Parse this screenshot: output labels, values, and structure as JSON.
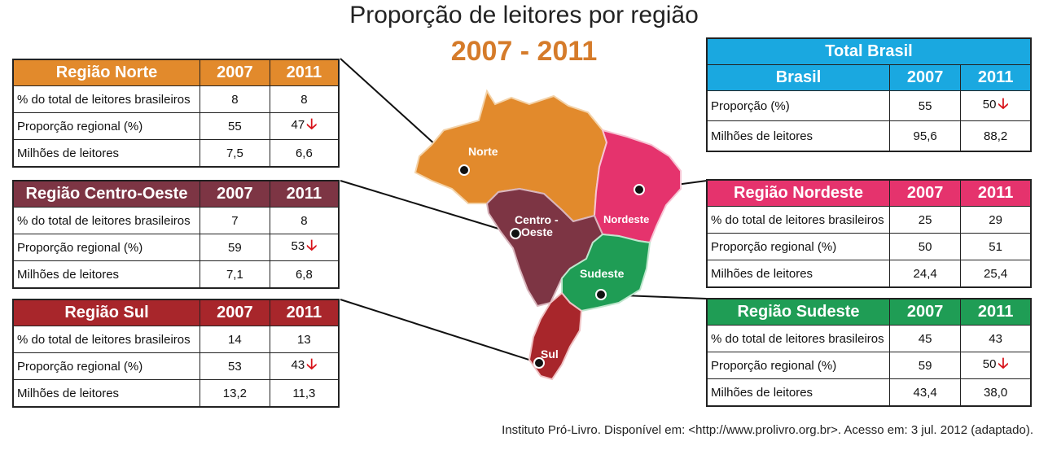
{
  "title": "Proporção de leitores por região",
  "subtitle": "2007 - 2011",
  "source": "Instituto Pró-Livro. Disponível em: <http://www.prolivro.org.br>. Acesso em: 3 jul. 2012 (adaptado).",
  "colors": {
    "norte": "#e28a2c",
    "centro_oeste": "#7d3544",
    "sul": "#a8262b",
    "nordeste": "#e5336d",
    "sudeste": "#1f9d55",
    "brasil": "#1aa8e0",
    "down_arrow": "#d8141b"
  },
  "map_labels": {
    "norte": "Norte",
    "centro_oeste_1": "Centro -",
    "centro_oeste_2": "Oeste",
    "nordeste": "Nordeste",
    "sudeste": "Sudeste",
    "sul": "Sul"
  },
  "chart_data": {
    "type": "table",
    "years": [
      "2007",
      "2011"
    ],
    "regions": [
      {
        "name": "Região Norte",
        "rows": [
          {
            "label": "% do total de leitores brasileiros",
            "v2007": "8",
            "v2011": "8",
            "down": false
          },
          {
            "label": "Proporção regional (%)",
            "v2007": "55",
            "v2011": "47",
            "down": true
          },
          {
            "label": "Milhões de leitores",
            "v2007": "7,5",
            "v2011": "6,6",
            "down": false
          }
        ]
      },
      {
        "name": "Região Centro-Oeste",
        "rows": [
          {
            "label": "% do total de leitores brasileiros",
            "v2007": "7",
            "v2011": "8",
            "down": false
          },
          {
            "label": "Proporção regional (%)",
            "v2007": "59",
            "v2011": "53",
            "down": true
          },
          {
            "label": "Milhões de leitores",
            "v2007": "7,1",
            "v2011": "6,8",
            "down": false
          }
        ]
      },
      {
        "name": "Região Sul",
        "rows": [
          {
            "label": "% do total de leitores brasileiros",
            "v2007": "14",
            "v2011": "13",
            "down": false
          },
          {
            "label": "Proporção regional (%)",
            "v2007": "53",
            "v2011": "43",
            "down": true
          },
          {
            "label": "Milhões de leitores",
            "v2007": "13,2",
            "v2011": "11,3",
            "down": false
          }
        ]
      },
      {
        "name": "Região Nordeste",
        "rows": [
          {
            "label": "% do total de leitores brasileiros",
            "v2007": "25",
            "v2011": "29",
            "down": false
          },
          {
            "label": "Proporção regional (%)",
            "v2007": "50",
            "v2011": "51",
            "down": false
          },
          {
            "label": "Milhões de leitores",
            "v2007": "24,4",
            "v2011": "25,4",
            "down": false
          }
        ]
      },
      {
        "name": "Região Sudeste",
        "rows": [
          {
            "label": "% do total de leitores brasileiros",
            "v2007": "45",
            "v2011": "43",
            "down": false
          },
          {
            "label": "Proporção regional (%)",
            "v2007": "59",
            "v2011": "50",
            "down": true
          },
          {
            "label": "Milhões de leitores",
            "v2007": "43,4",
            "v2011": "38,0",
            "down": false
          }
        ]
      }
    ],
    "total": {
      "name": "Total Brasil",
      "subname": "Brasil",
      "rows": [
        {
          "label": "Proporção (%)",
          "v2007": "55",
          "v2011": "50",
          "down": true
        },
        {
          "label": "Milhões de leitores",
          "v2007": "95,6",
          "v2011": "88,2",
          "down": false
        }
      ]
    }
  }
}
